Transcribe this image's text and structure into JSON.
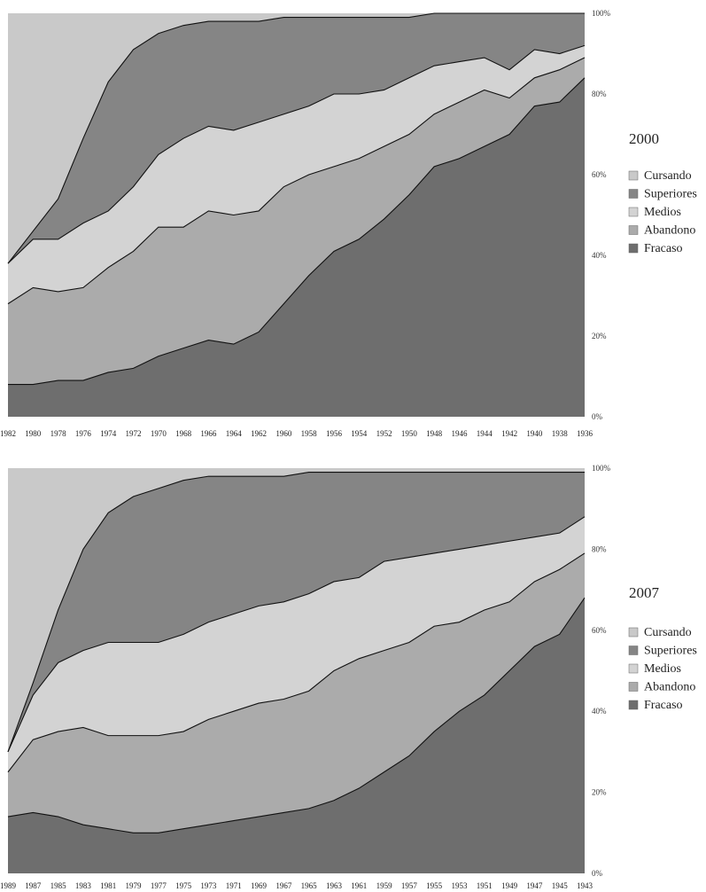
{
  "chart_data": [
    {
      "type": "area",
      "stacked": "percent",
      "title": "2000",
      "categories": [
        "1982",
        "1980",
        "1978",
        "1976",
        "1974",
        "1972",
        "1970",
        "1968",
        "1966",
        "1964",
        "1962",
        "1960",
        "1958",
        "1956",
        "1954",
        "1952",
        "1950",
        "1948",
        "1946",
        "1944",
        "1942",
        "1940",
        "1938",
        "1936"
      ],
      "x_axis_reversed": true,
      "ylim": [
        0,
        100
      ],
      "yticks": [
        "0%",
        "20%",
        "40%",
        "60%",
        "80%",
        "100%"
      ],
      "legend": [
        "Cursando",
        "Superiores",
        "Medios",
        "Abandono",
        "Fracaso"
      ],
      "cumulative_boundaries": [
        {
          "name": "Fracaso",
          "values": [
            8,
            8,
            9,
            9,
            11,
            12,
            15,
            17,
            19,
            18,
            21,
            28,
            35,
            41,
            44,
            49,
            55,
            62,
            64,
            67,
            70,
            77,
            78,
            84
          ]
        },
        {
          "name": "Abandono",
          "values": [
            28,
            32,
            31,
            32,
            37,
            41,
            47,
            47,
            51,
            50,
            51,
            57,
            60,
            62,
            64,
            67,
            70,
            75,
            78,
            81,
            79,
            84,
            86,
            89
          ]
        },
        {
          "name": "Medios",
          "values": [
            38,
            44,
            44,
            48,
            51,
            57,
            65,
            69,
            72,
            71,
            73,
            75,
            77,
            80,
            80,
            81,
            84,
            87,
            88,
            89,
            86,
            91,
            90,
            92
          ]
        },
        {
          "name": "Superiores",
          "values": [
            38,
            46,
            54,
            69,
            83,
            91,
            95,
            97,
            98,
            98,
            98,
            99,
            99,
            99,
            99,
            99,
            99,
            100,
            100,
            100,
            100,
            100,
            100,
            100
          ]
        }
      ],
      "series_values": [
        {
          "name": "Fracaso",
          "values": [
            8,
            8,
            9,
            9,
            11,
            12,
            15,
            17,
            19,
            18,
            21,
            28,
            35,
            41,
            44,
            49,
            55,
            62,
            64,
            67,
            70,
            77,
            78,
            84
          ]
        },
        {
          "name": "Abandono",
          "values": [
            20,
            24,
            22,
            23,
            26,
            29,
            32,
            30,
            32,
            32,
            30,
            29,
            25,
            21,
            20,
            18,
            15,
            13,
            14,
            14,
            9,
            7,
            8,
            5
          ]
        },
        {
          "name": "Medios",
          "values": [
            10,
            12,
            13,
            16,
            14,
            16,
            18,
            22,
            21,
            21,
            22,
            18,
            17,
            18,
            16,
            14,
            14,
            12,
            10,
            8,
            7,
            7,
            4,
            3
          ]
        },
        {
          "name": "Superiores",
          "values": [
            0,
            2,
            10,
            21,
            32,
            34,
            30,
            28,
            26,
            27,
            25,
            24,
            22,
            19,
            19,
            18,
            15,
            13,
            12,
            11,
            14,
            9,
            10,
            8
          ]
        },
        {
          "name": "Cursando",
          "values": [
            62,
            54,
            46,
            31,
            17,
            9,
            5,
            3,
            2,
            2,
            2,
            1,
            1,
            1,
            1,
            1,
            1,
            0,
            0,
            0,
            0,
            0,
            0,
            0
          ]
        }
      ]
    },
    {
      "type": "area",
      "stacked": "percent",
      "title": "2007",
      "categories": [
        "1989",
        "1987",
        "1985",
        "1983",
        "1981",
        "1979",
        "1977",
        "1975",
        "1973",
        "1971",
        "1969",
        "1967",
        "1965",
        "1963",
        "1961",
        "1959",
        "1957",
        "1955",
        "1953",
        "1951",
        "1949",
        "1947",
        "1945",
        "1943"
      ],
      "x_axis_reversed": true,
      "ylim": [
        0,
        100
      ],
      "yticks": [
        "0%",
        "20%",
        "40%",
        "60%",
        "80%",
        "100%"
      ],
      "legend": [
        "Cursando",
        "Superiores",
        "Medios",
        "Abandono",
        "Fracaso"
      ],
      "cumulative_boundaries": [
        {
          "name": "Fracaso",
          "values": [
            14,
            15,
            14,
            12,
            11,
            10,
            10,
            11,
            12,
            13,
            14,
            15,
            16,
            18,
            21,
            25,
            29,
            35,
            40,
            44,
            50,
            56,
            59,
            68
          ]
        },
        {
          "name": "Abandono",
          "values": [
            25,
            33,
            35,
            36,
            34,
            34,
            34,
            35,
            38,
            40,
            42,
            43,
            45,
            50,
            53,
            55,
            57,
            61,
            62,
            65,
            67,
            72,
            75,
            79
          ]
        },
        {
          "name": "Medios",
          "values": [
            30,
            44,
            52,
            55,
            57,
            57,
            57,
            59,
            62,
            64,
            66,
            67,
            69,
            72,
            73,
            77,
            78,
            79,
            80,
            81,
            82,
            83,
            84,
            88
          ]
        },
        {
          "name": "Superiores",
          "values": [
            30,
            47,
            65,
            80,
            89,
            93,
            95,
            97,
            98,
            98,
            98,
            98,
            99,
            99,
            99,
            99,
            99,
            99,
            99,
            99,
            99,
            99,
            99,
            99
          ]
        }
      ],
      "series_values": [
        {
          "name": "Fracaso",
          "values": [
            14,
            15,
            14,
            12,
            11,
            10,
            10,
            11,
            12,
            13,
            14,
            15,
            16,
            18,
            21,
            25,
            29,
            35,
            40,
            44,
            50,
            56,
            59,
            68
          ]
        },
        {
          "name": "Abandono",
          "values": [
            11,
            18,
            21,
            24,
            23,
            24,
            24,
            24,
            26,
            27,
            28,
            28,
            29,
            32,
            32,
            30,
            28,
            26,
            22,
            21,
            17,
            16,
            16,
            11
          ]
        },
        {
          "name": "Medios",
          "values": [
            5,
            11,
            17,
            19,
            23,
            23,
            23,
            24,
            24,
            24,
            24,
            24,
            24,
            22,
            20,
            22,
            21,
            18,
            18,
            16,
            15,
            11,
            9,
            9
          ]
        },
        {
          "name": "Superiores",
          "values": [
            0,
            3,
            13,
            25,
            32,
            36,
            38,
            38,
            36,
            34,
            32,
            31,
            30,
            27,
            26,
            22,
            21,
            20,
            19,
            18,
            17,
            16,
            15,
            11
          ]
        },
        {
          "name": "Cursando",
          "values": [
            70,
            53,
            35,
            20,
            11,
            7,
            5,
            3,
            2,
            2,
            2,
            2,
            1,
            1,
            1,
            1,
            1,
            1,
            1,
            1,
            1,
            1,
            1,
            1
          ]
        }
      ]
    }
  ],
  "colors": {
    "Cursando": "#c9c9c9",
    "Superiores": "#858585",
    "Medios": "#d3d3d3",
    "Abandono": "#ababab",
    "Fracaso": "#6e6e6e",
    "boundary": "#111111"
  }
}
